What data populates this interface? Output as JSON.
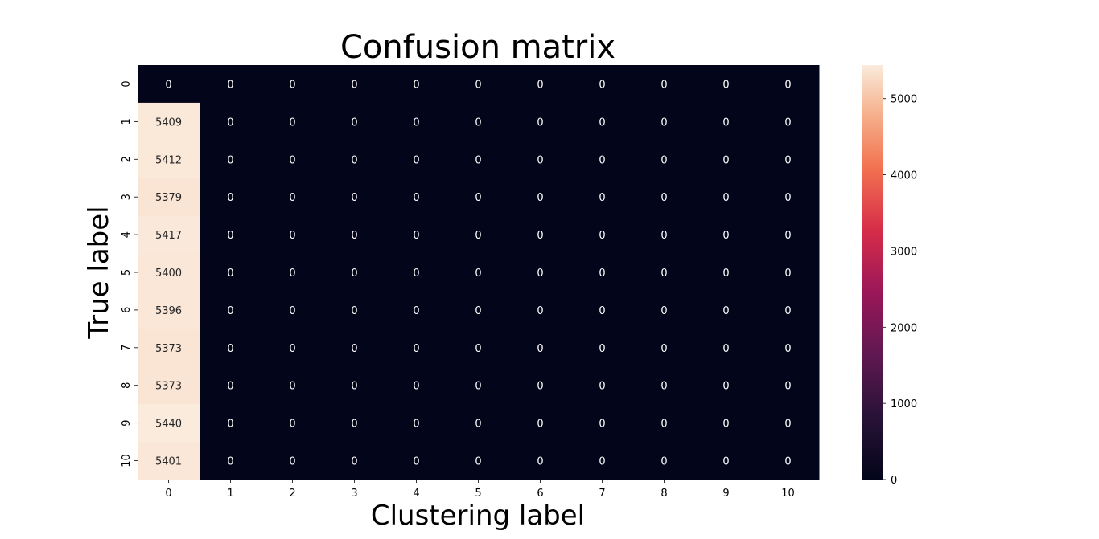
{
  "chart_data": {
    "type": "heatmap",
    "title": "Confusion matrix",
    "xlabel": "Clustering label",
    "ylabel": "True label",
    "x_categories": [
      "0",
      "1",
      "2",
      "3",
      "4",
      "5",
      "6",
      "7",
      "8",
      "9",
      "10"
    ],
    "y_categories": [
      "0",
      "1",
      "2",
      "3",
      "4",
      "5",
      "6",
      "7",
      "8",
      "9",
      "10"
    ],
    "values": [
      [
        0,
        0,
        0,
        0,
        0,
        0,
        0,
        0,
        0,
        0,
        0
      ],
      [
        5409,
        0,
        0,
        0,
        0,
        0,
        0,
        0,
        0,
        0,
        0
      ],
      [
        5412,
        0,
        0,
        0,
        0,
        0,
        0,
        0,
        0,
        0,
        0
      ],
      [
        5379,
        0,
        0,
        0,
        0,
        0,
        0,
        0,
        0,
        0,
        0
      ],
      [
        5417,
        0,
        0,
        0,
        0,
        0,
        0,
        0,
        0,
        0,
        0
      ],
      [
        5400,
        0,
        0,
        0,
        0,
        0,
        0,
        0,
        0,
        0,
        0
      ],
      [
        5396,
        0,
        0,
        0,
        0,
        0,
        0,
        0,
        0,
        0,
        0
      ],
      [
        5373,
        0,
        0,
        0,
        0,
        0,
        0,
        0,
        0,
        0,
        0
      ],
      [
        5373,
        0,
        0,
        0,
        0,
        0,
        0,
        0,
        0,
        0,
        0
      ],
      [
        5440,
        0,
        0,
        0,
        0,
        0,
        0,
        0,
        0,
        0,
        0
      ],
      [
        5401,
        0,
        0,
        0,
        0,
        0,
        0,
        0,
        0,
        0,
        0
      ]
    ],
    "colorbar": {
      "min": 0,
      "max": 5440,
      "ticks": [
        0,
        1000,
        2000,
        3000,
        4000,
        5000
      ],
      "colormap": "rocket"
    },
    "grid": false
  }
}
